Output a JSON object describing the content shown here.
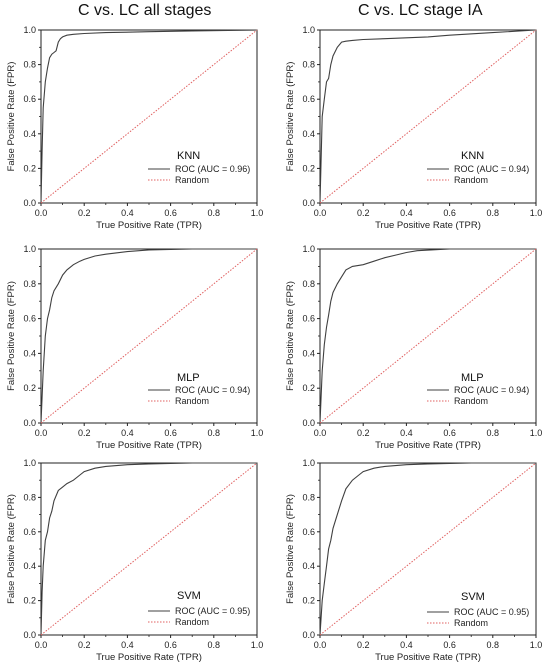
{
  "figure": {
    "column_titles": [
      "C vs. LC all stages",
      "C vs. LC stage IA"
    ]
  },
  "chart_data": [
    {
      "type": "line",
      "title": "KNN",
      "column": "C vs. LC all stages",
      "xlabel": "True Positive Rate (TPR)",
      "ylabel": "False Positive Rate (FPR)",
      "xlim": [
        0,
        1
      ],
      "ylim": [
        0,
        1
      ],
      "xticks": [
        "0.0",
        "0.2",
        "0.4",
        "0.6",
        "0.8",
        "1.0"
      ],
      "yticks": [
        "0.0",
        "0.2",
        "0.4",
        "0.6",
        "0.8",
        "1.0"
      ],
      "legend": {
        "position": "center-right"
      },
      "series": [
        {
          "name": "ROC (AUC = 0.96)",
          "color": "#404040",
          "style": "solid",
          "x": [
            0,
            0.005,
            0.01,
            0.02,
            0.03,
            0.04,
            0.05,
            0.06,
            0.07,
            0.08,
            0.09,
            0.1,
            0.12,
            0.15,
            0.2,
            0.3,
            0.5,
            0.7,
            1.0
          ],
          "y": [
            0,
            0.3,
            0.55,
            0.7,
            0.78,
            0.84,
            0.86,
            0.87,
            0.88,
            0.93,
            0.95,
            0.96,
            0.97,
            0.975,
            0.98,
            0.985,
            0.99,
            0.995,
            1.0
          ]
        },
        {
          "name": "Random",
          "color": "#e06060",
          "style": "dotted",
          "x": [
            0,
            1
          ],
          "y": [
            0,
            1
          ]
        }
      ]
    },
    {
      "type": "line",
      "title": "KNN",
      "column": "C vs. LC stage IA",
      "xlabel": "True Positive Rate (TPR)",
      "ylabel": "False Positive Rate (FPR)",
      "xlim": [
        0,
        1
      ],
      "ylim": [
        0,
        1
      ],
      "xticks": [
        "0.0",
        "0.2",
        "0.4",
        "0.6",
        "0.8",
        "1.0"
      ],
      "yticks": [
        "0.0",
        "0.2",
        "0.4",
        "0.6",
        "0.8",
        "1.0"
      ],
      "legend": {
        "position": "center-right"
      },
      "series": [
        {
          "name": "ROC (AUC = 0.94)",
          "color": "#404040",
          "style": "solid",
          "x": [
            0,
            0.005,
            0.01,
            0.02,
            0.03,
            0.04,
            0.05,
            0.06,
            0.08,
            0.1,
            0.12,
            0.15,
            0.2,
            0.3,
            0.4,
            0.5,
            0.6,
            0.8,
            1.0
          ],
          "y": [
            0,
            0.25,
            0.5,
            0.6,
            0.7,
            0.72,
            0.8,
            0.85,
            0.9,
            0.93,
            0.935,
            0.94,
            0.945,
            0.95,
            0.955,
            0.96,
            0.97,
            0.985,
            1.0
          ]
        },
        {
          "name": "Random",
          "color": "#e06060",
          "style": "dotted",
          "x": [
            0,
            1
          ],
          "y": [
            0,
            1
          ]
        }
      ]
    },
    {
      "type": "line",
      "title": "MLP",
      "column": "C vs. LC all stages",
      "xlabel": "True Positive Rate (TPR)",
      "ylabel": "False Positive Rate (FPR)",
      "xlim": [
        0,
        1
      ],
      "ylim": [
        0,
        1
      ],
      "xticks": [
        "0.0",
        "0.2",
        "0.4",
        "0.6",
        "0.8",
        "1.0"
      ],
      "yticks": [
        "0.0",
        "0.2",
        "0.4",
        "0.6",
        "0.8",
        "1.0"
      ],
      "legend": {
        "position": "bottom-right"
      },
      "series": [
        {
          "name": "ROC (AUC = 0.94)",
          "color": "#404040",
          "style": "solid",
          "x": [
            0,
            0.01,
            0.02,
            0.03,
            0.04,
            0.05,
            0.06,
            0.08,
            0.1,
            0.12,
            0.15,
            0.18,
            0.2,
            0.25,
            0.3,
            0.4,
            0.5,
            0.7,
            1.0
          ],
          "y": [
            0,
            0.3,
            0.5,
            0.6,
            0.65,
            0.72,
            0.76,
            0.8,
            0.85,
            0.88,
            0.91,
            0.93,
            0.94,
            0.96,
            0.97,
            0.985,
            0.995,
            1.0,
            1.0
          ]
        },
        {
          "name": "Random",
          "color": "#e06060",
          "style": "dotted",
          "x": [
            0,
            1
          ],
          "y": [
            0,
            1
          ]
        }
      ]
    },
    {
      "type": "line",
      "title": "MLP",
      "column": "C vs. LC stage IA",
      "xlabel": "True Positive Rate (TPR)",
      "ylabel": "False Positive Rate (FPR)",
      "xlim": [
        0,
        1
      ],
      "ylim": [
        0,
        1
      ],
      "xticks": [
        "0.0",
        "0.2",
        "0.4",
        "0.6",
        "0.8",
        "1.0"
      ],
      "yticks": [
        "0.0",
        "0.2",
        "0.4",
        "0.6",
        "0.8",
        "1.0"
      ],
      "legend": {
        "position": "bottom-right"
      },
      "series": [
        {
          "name": "ROC (AUC = 0.94)",
          "color": "#404040",
          "style": "solid",
          "x": [
            0,
            0.01,
            0.02,
            0.03,
            0.04,
            0.05,
            0.06,
            0.08,
            0.1,
            0.12,
            0.15,
            0.2,
            0.25,
            0.3,
            0.35,
            0.4,
            0.45,
            0.6,
            0.8,
            1.0
          ],
          "y": [
            0,
            0.3,
            0.45,
            0.55,
            0.62,
            0.7,
            0.75,
            0.8,
            0.84,
            0.88,
            0.9,
            0.91,
            0.93,
            0.95,
            0.965,
            0.98,
            0.99,
            1.0,
            1.0,
            1.0
          ]
        },
        {
          "name": "Random",
          "color": "#e06060",
          "style": "dotted",
          "x": [
            0,
            1
          ],
          "y": [
            0,
            1
          ]
        }
      ]
    },
    {
      "type": "line",
      "title": "SVM",
      "column": "C vs. LC all stages",
      "xlabel": "True Positive Rate (TPR)",
      "ylabel": "False Positive Rate (FPR)",
      "xlim": [
        0,
        1
      ],
      "ylim": [
        0,
        1
      ],
      "xticks": [
        "0.0",
        "0.2",
        "0.4",
        "0.6",
        "0.8",
        "1.0"
      ],
      "yticks": [
        "0.0",
        "0.2",
        "0.4",
        "0.6",
        "0.8",
        "1.0"
      ],
      "legend": {
        "position": "bottom-right"
      },
      "series": [
        {
          "name": "ROC (AUC = 0.95)",
          "color": "#404040",
          "style": "solid",
          "x": [
            0,
            0.005,
            0.01,
            0.02,
            0.03,
            0.04,
            0.05,
            0.06,
            0.08,
            0.1,
            0.12,
            0.15,
            0.18,
            0.2,
            0.25,
            0.3,
            0.4,
            0.5,
            0.7,
            1.0
          ],
          "y": [
            0,
            0.25,
            0.4,
            0.55,
            0.6,
            0.68,
            0.72,
            0.78,
            0.84,
            0.86,
            0.88,
            0.9,
            0.93,
            0.95,
            0.97,
            0.98,
            0.99,
            0.995,
            1.0,
            1.0
          ]
        },
        {
          "name": "Random",
          "color": "#e06060",
          "style": "dotted",
          "x": [
            0,
            1
          ],
          "y": [
            0,
            1
          ]
        }
      ]
    },
    {
      "type": "line",
      "title": "SVM",
      "column": "C vs. LC stage IA",
      "xlabel": "True Positive Rate (TPR)",
      "ylabel": "False Positive Rate (FPR)",
      "xlim": [
        0,
        1
      ],
      "ylim": [
        0,
        1
      ],
      "xticks": [
        "0.0",
        "0.2",
        "0.4",
        "0.6",
        "0.8",
        "1.0"
      ],
      "yticks": [
        "0.0",
        "0.2",
        "0.4",
        "0.6",
        "0.8",
        "1.0"
      ],
      "legend": {
        "position": "bottom-right"
      },
      "series": [
        {
          "name": "ROC (AUC = 0.95)",
          "color": "#404040",
          "style": "solid",
          "x": [
            0,
            0.01,
            0.02,
            0.03,
            0.04,
            0.05,
            0.06,
            0.08,
            0.1,
            0.12,
            0.15,
            0.18,
            0.2,
            0.25,
            0.3,
            0.4,
            0.5,
            0.7,
            1.0
          ],
          "y": [
            0,
            0.2,
            0.3,
            0.4,
            0.5,
            0.55,
            0.62,
            0.7,
            0.78,
            0.85,
            0.9,
            0.93,
            0.95,
            0.97,
            0.98,
            0.99,
            0.995,
            1.0,
            1.0
          ]
        },
        {
          "name": "Random",
          "color": "#e06060",
          "style": "dotted",
          "x": [
            0,
            1
          ],
          "y": [
            0,
            1
          ]
        }
      ]
    }
  ]
}
